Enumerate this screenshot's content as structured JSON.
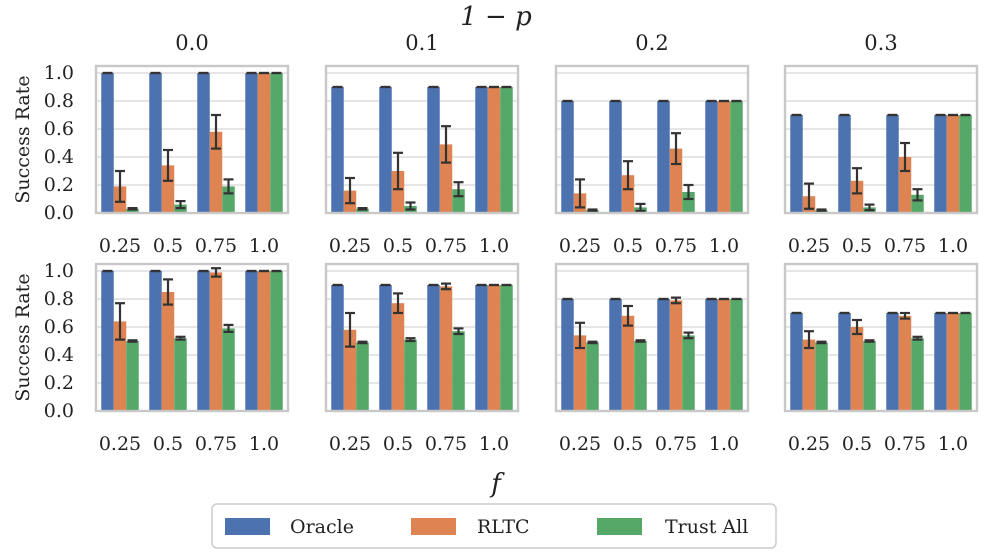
{
  "chart_data": {
    "type": "bar",
    "title": "1 − p",
    "xlabel": "f",
    "ylabel": "Success Rate",
    "ylim": [
      0,
      1.05
    ],
    "yticks": [
      "0.0",
      "0.2",
      "0.4",
      "0.6",
      "0.8",
      "1.0"
    ],
    "categories": [
      "0.25",
      "0.5",
      "0.75",
      "1.0"
    ],
    "column_titles": [
      "0.0",
      "0.1",
      "0.2",
      "0.3"
    ],
    "grid": true,
    "legend_position": "bottom-center",
    "series_names": [
      "Oracle",
      "RLTC",
      "Trust All"
    ],
    "colors": {
      "Oracle": "#4c72b0",
      "RLTC": "#dd8452",
      "Trust All": "#55a868",
      "grid": "#dddddd",
      "frame": "#c8c8c8",
      "errorbar": "#333333"
    },
    "panels": [
      {
        "row": 0,
        "col": 0,
        "series": [
          {
            "name": "Oracle",
            "values": [
              1.0,
              1.0,
              1.0,
              1.0
            ],
            "err": [
              0,
              0,
              0,
              0
            ]
          },
          {
            "name": "RLTC",
            "values": [
              0.19,
              0.34,
              0.58,
              1.0
            ],
            "err": [
              0.11,
              0.11,
              0.12,
              0
            ]
          },
          {
            "name": "Trust All",
            "values": [
              0.03,
              0.06,
              0.19,
              1.0
            ],
            "err": [
              0.005,
              0.025,
              0.05,
              0
            ]
          }
        ]
      },
      {
        "row": 0,
        "col": 1,
        "series": [
          {
            "name": "Oracle",
            "values": [
              0.9,
              0.9,
              0.9,
              0.9
            ],
            "err": [
              0,
              0,
              0,
              0
            ]
          },
          {
            "name": "RLTC",
            "values": [
              0.16,
              0.3,
              0.49,
              0.9
            ],
            "err": [
              0.09,
              0.13,
              0.13,
              0
            ]
          },
          {
            "name": "Trust All",
            "values": [
              0.03,
              0.05,
              0.17,
              0.9
            ],
            "err": [
              0.005,
              0.025,
              0.05,
              0
            ]
          }
        ]
      },
      {
        "row": 0,
        "col": 2,
        "series": [
          {
            "name": "Oracle",
            "values": [
              0.8,
              0.8,
              0.8,
              0.8
            ],
            "err": [
              0,
              0,
              0,
              0
            ]
          },
          {
            "name": "RLTC",
            "values": [
              0.14,
              0.27,
              0.46,
              0.8
            ],
            "err": [
              0.1,
              0.1,
              0.11,
              0
            ]
          },
          {
            "name": "Trust All",
            "values": [
              0.02,
              0.04,
              0.15,
              0.8
            ],
            "err": [
              0.005,
              0.025,
              0.05,
              0
            ]
          }
        ]
      },
      {
        "row": 0,
        "col": 3,
        "series": [
          {
            "name": "Oracle",
            "values": [
              0.7,
              0.7,
              0.7,
              0.7
            ],
            "err": [
              0,
              0,
              0,
              0
            ]
          },
          {
            "name": "RLTC",
            "values": [
              0.12,
              0.23,
              0.4,
              0.7
            ],
            "err": [
              0.09,
              0.09,
              0.1,
              0
            ]
          },
          {
            "name": "Trust All",
            "values": [
              0.02,
              0.04,
              0.13,
              0.7
            ],
            "err": [
              0.005,
              0.02,
              0.04,
              0
            ]
          }
        ]
      },
      {
        "row": 1,
        "col": 0,
        "series": [
          {
            "name": "Oracle",
            "values": [
              1.0,
              1.0,
              1.0,
              1.0
            ],
            "err": [
              0,
              0,
              0,
              0
            ]
          },
          {
            "name": "RLTC",
            "values": [
              0.64,
              0.85,
              0.99,
              1.0
            ],
            "err": [
              0.13,
              0.09,
              0.03,
              0
            ]
          },
          {
            "name": "Trust All",
            "values": [
              0.5,
              0.52,
              0.59,
              1.0
            ],
            "err": [
              0.005,
              0.01,
              0.025,
              0
            ]
          }
        ]
      },
      {
        "row": 1,
        "col": 1,
        "series": [
          {
            "name": "Oracle",
            "values": [
              0.9,
              0.9,
              0.9,
              0.9
            ],
            "err": [
              0,
              0,
              0,
              0
            ]
          },
          {
            "name": "RLTC",
            "values": [
              0.58,
              0.77,
              0.89,
              0.9
            ],
            "err": [
              0.12,
              0.07,
              0.02,
              0
            ]
          },
          {
            "name": "Trust All",
            "values": [
              0.49,
              0.51,
              0.57,
              0.9
            ],
            "err": [
              0.005,
              0.01,
              0.02,
              0
            ]
          }
        ]
      },
      {
        "row": 1,
        "col": 2,
        "series": [
          {
            "name": "Oracle",
            "values": [
              0.8,
              0.8,
              0.8,
              0.8
            ],
            "err": [
              0,
              0,
              0,
              0
            ]
          },
          {
            "name": "RLTC",
            "values": [
              0.54,
              0.68,
              0.79,
              0.8
            ],
            "err": [
              0.09,
              0.07,
              0.02,
              0
            ]
          },
          {
            "name": "Trust All",
            "values": [
              0.49,
              0.5,
              0.54,
              0.8
            ],
            "err": [
              0.005,
              0.005,
              0.02,
              0
            ]
          }
        ]
      },
      {
        "row": 1,
        "col": 3,
        "series": [
          {
            "name": "Oracle",
            "values": [
              0.7,
              0.7,
              0.7,
              0.7
            ],
            "err": [
              0,
              0,
              0,
              0
            ]
          },
          {
            "name": "RLTC",
            "values": [
              0.51,
              0.6,
              0.68,
              0.7
            ],
            "err": [
              0.06,
              0.05,
              0.02,
              0
            ]
          },
          {
            "name": "Trust All",
            "values": [
              0.49,
              0.5,
              0.52,
              0.7
            ],
            "err": [
              0.005,
              0.005,
              0.01,
              0
            ]
          }
        ]
      }
    ]
  }
}
